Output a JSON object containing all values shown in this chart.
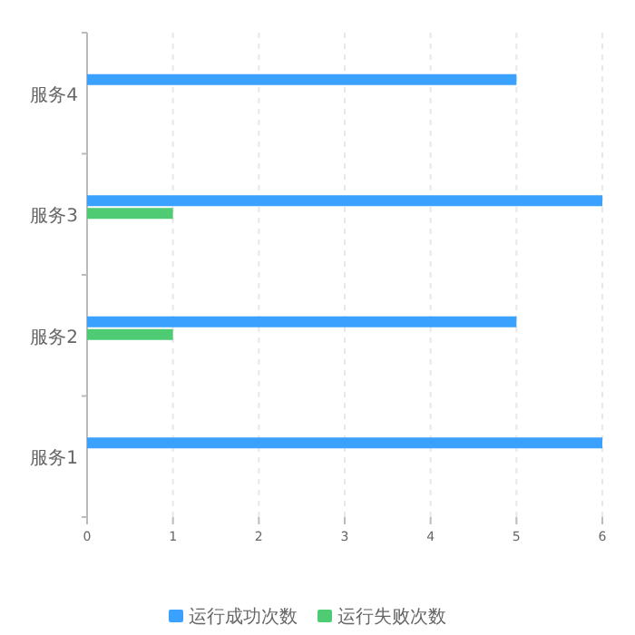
{
  "chart_data": {
    "type": "bar",
    "orientation": "horizontal",
    "categories": [
      "服务4",
      "服务3",
      "服务2",
      "服务1"
    ],
    "series": [
      {
        "name": "运行成功次数",
        "color": "#3ba1ff",
        "values": [
          5,
          6,
          5,
          6
        ]
      },
      {
        "name": "运行失败次数",
        "color": "#4ecb73",
        "values": [
          null,
          1,
          1,
          null
        ]
      }
    ],
    "xlim": [
      0,
      6
    ],
    "xticks": [
      0,
      1,
      2,
      3,
      4,
      5,
      6
    ],
    "grid": "x",
    "legend": "bottom"
  }
}
